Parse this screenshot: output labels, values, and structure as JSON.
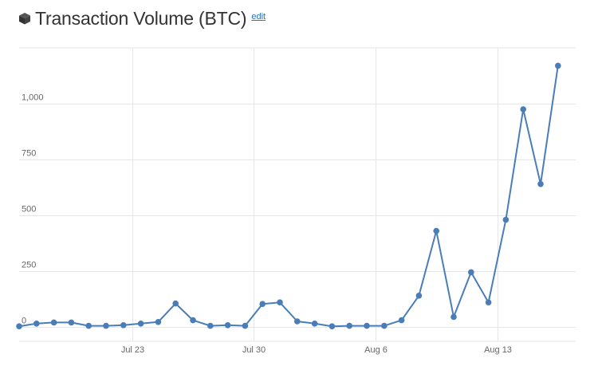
{
  "header": {
    "title": "Transaction Volume (BTC)",
    "edit_label": "edit",
    "icon": "cube-icon"
  },
  "colors": {
    "line": "#4a7db8",
    "grid": "#e6e6e6",
    "axis_text": "#666666"
  },
  "chart_data": {
    "type": "line",
    "title": "Transaction Volume (BTC)",
    "xlabel": "",
    "ylabel": "",
    "ylim": [
      0,
      1250
    ],
    "grid": true,
    "y_ticks": [
      0,
      250,
      500,
      750,
      1000
    ],
    "y_tick_labels": [
      "0",
      "250",
      "500",
      "750",
      "1,000"
    ],
    "x_ticks": [
      "Jul 23",
      "Jul 30",
      "Aug 6",
      "Aug 13"
    ],
    "x_tick_positions": [
      4.5,
      11.5,
      18.5,
      25.5
    ],
    "series": [
      {
        "x": [
          -2,
          -1,
          0,
          1,
          2,
          3,
          4,
          5,
          6,
          7,
          8,
          9,
          10,
          11,
          12,
          13,
          14,
          15,
          16,
          17,
          18,
          19,
          20,
          21,
          22,
          23,
          24,
          25,
          26,
          27,
          28,
          29,
          30
        ],
        "values": [
          3,
          15,
          20,
          20,
          5,
          5,
          8,
          15,
          22,
          105,
          30,
          5,
          8,
          5,
          103,
          110,
          25,
          15,
          3,
          5,
          5,
          5,
          30,
          140,
          430,
          45,
          245,
          110,
          480,
          975,
          640,
          1170,
          null
        ]
      }
    ]
  }
}
